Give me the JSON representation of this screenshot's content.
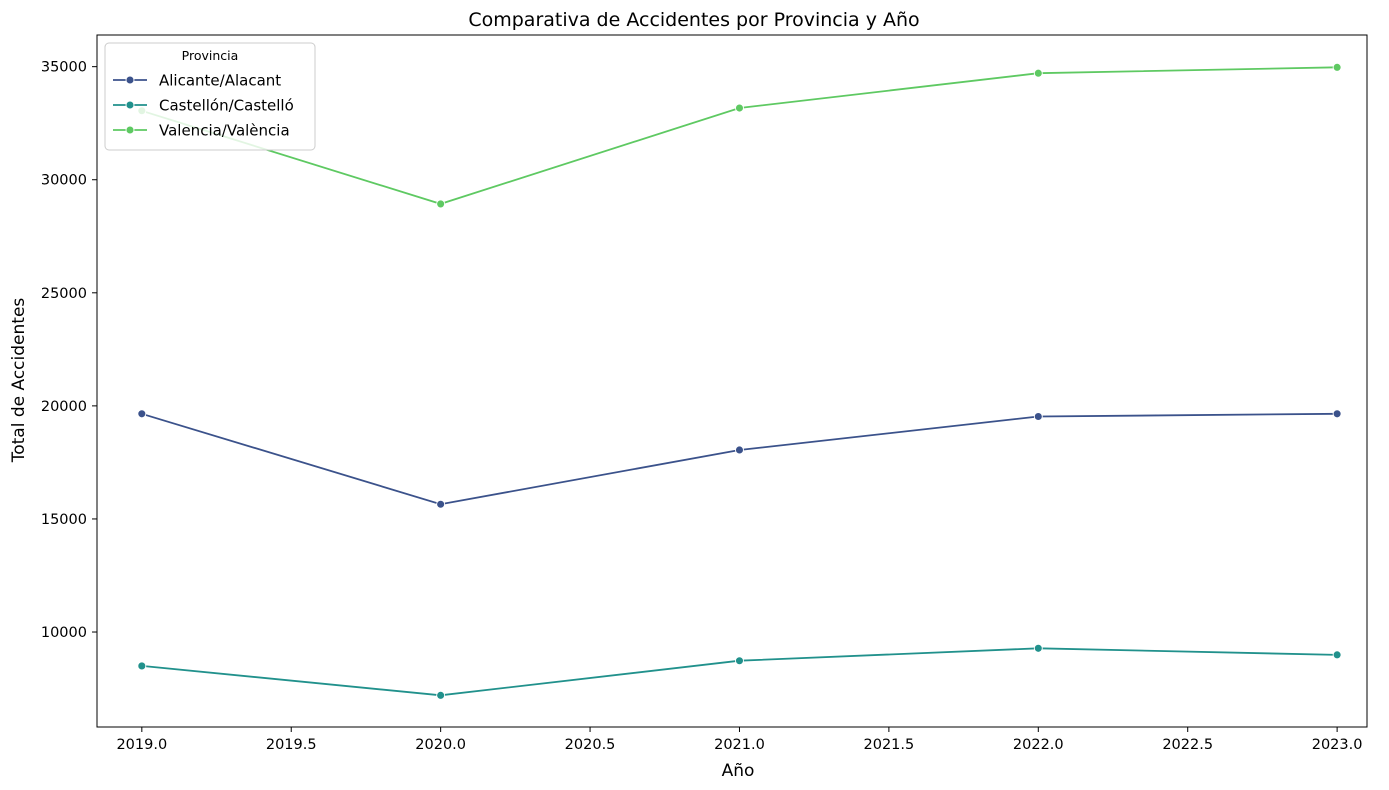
{
  "chart_data": {
    "type": "line",
    "title": "Comparativa de Accidentes por Provincia y Año",
    "xlabel": "Año",
    "ylabel": "Total de Accidentes",
    "x": [
      2019,
      2020,
      2021,
      2022,
      2023
    ],
    "xlim": [
      2018.85,
      2023.1
    ],
    "ylim": [
      5800,
      36400
    ],
    "x_ticks": [
      2019.0,
      2019.5,
      2020.0,
      2020.5,
      2021.0,
      2021.5,
      2022.0,
      2022.5,
      2023.0
    ],
    "x_tick_labels": [
      "2019.0",
      "2019.5",
      "2020.0",
      "2020.5",
      "2021.0",
      "2021.5",
      "2022.0",
      "2022.5",
      "2023.0"
    ],
    "y_ticks": [
      10000,
      15000,
      20000,
      25000,
      30000,
      35000
    ],
    "y_tick_labels": [
      "10000",
      "15000",
      "20000",
      "25000",
      "30000",
      "35000"
    ],
    "grid": false,
    "legend": {
      "title": "Provincia",
      "position": "top-left"
    },
    "series": [
      {
        "name": "Alicante/Alacant",
        "color": "#3b528b",
        "values": [
          19650,
          15650,
          18050,
          19530,
          19650
        ]
      },
      {
        "name": "Castellón/Castelló",
        "color": "#21918c",
        "values": [
          8500,
          7200,
          8730,
          9280,
          8990
        ]
      },
      {
        "name": "Valencia/València",
        "color": "#5ec962",
        "values": [
          33050,
          28930,
          33170,
          34710,
          34970
        ]
      }
    ]
  }
}
